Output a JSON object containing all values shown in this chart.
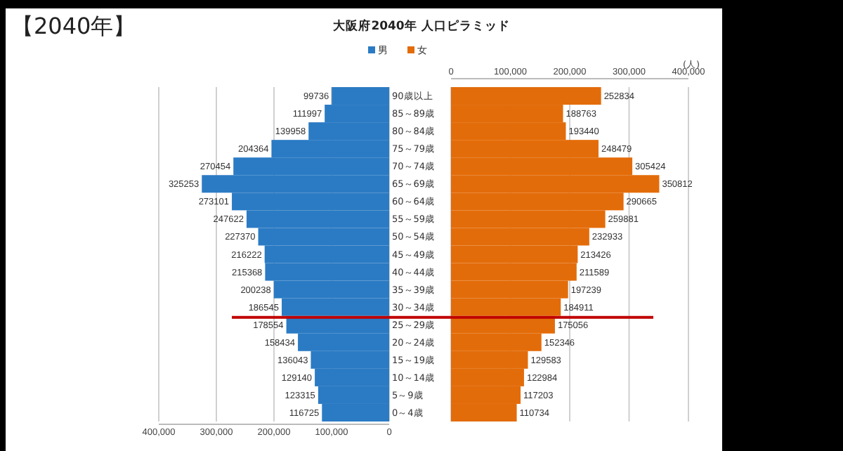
{
  "chart_data": [
    {
      "type": "bar",
      "orientation": "horizontal",
      "title": "大阪府2040年 人口ピラミッド",
      "annotations": [
        "【2040年】"
      ],
      "categories": [
        "90歳以上",
        "85～89歳",
        "80～84歳",
        "75～79歳",
        "70～74歳",
        "65～69歳",
        "60～64歳",
        "55～59歳",
        "50～54歳",
        "45～49歳",
        "40～44歳",
        "35～39歳",
        "30～34歳",
        "25～29歳",
        "20～24歳",
        "15～19歳",
        "10～14歳",
        "5～9歳",
        "0～4歳"
      ],
      "series": [
        {
          "name": "男",
          "color": "#2b7bc4",
          "values": [
            99736,
            111997,
            139958,
            204364,
            270454,
            325253,
            273101,
            247622,
            227370,
            216222,
            215368,
            200238,
            186545,
            178554,
            158434,
            136043,
            129140,
            123315,
            116725
          ]
        }
      ],
      "xlim": [
        400000,
        0
      ],
      "xticks": [
        {
          "value": 400000,
          "label": "400,000"
        },
        {
          "value": 300000,
          "label": "300,000"
        },
        {
          "value": 200000,
          "label": "200,000"
        },
        {
          "value": 100000,
          "label": "100,000"
        },
        0
      ],
      "grid": "x",
      "legend": "top",
      "data_labels": true,
      "tick_labels": "x",
      "ref_lines": [
        {
          "axis": "y",
          "value": "25～29歳",
          "color": "#c00000"
        }
      ]
    },
    {
      "type": "bar",
      "orientation": "horizontal",
      "annotations": [
        "(人)"
      ],
      "categories": [
        "90歳以上",
        "85～89歳",
        "80～84歳",
        "75～79歳",
        "70～74歳",
        "65～69歳",
        "60～64歳",
        "55～59歳",
        "50～54歳",
        "45～49歳",
        "40～44歳",
        "35～39歳",
        "30～34歳",
        "25～29歳",
        "20～24歳",
        "15～19歳",
        "10～14歳",
        "5～9歳",
        "0～4歳"
      ],
      "series": [
        {
          "name": "女",
          "color": "#e36c0a",
          "values": [
            252834,
            188763,
            193440,
            248479,
            305424,
            350812,
            290665,
            259881,
            232933,
            213426,
            211589,
            197239,
            184911,
            175056,
            152346,
            129583,
            122984,
            117203,
            110734
          ]
        }
      ],
      "x2lim": [
        0,
        400000
      ],
      "x2ticks": [
        0,
        {
          "value": 100000,
          "label": "100,000"
        },
        {
          "value": 200000,
          "label": "200,000"
        },
        {
          "value": 300000,
          "label": "300,000"
        },
        {
          "value": 400000,
          "label": "400,000"
        }
      ],
      "grid": "x",
      "legend": "top",
      "data_labels": true,
      "ref_lines": [
        {
          "axis": "y",
          "value": "25～29歳",
          "color": "#c00000"
        }
      ]
    }
  ]
}
